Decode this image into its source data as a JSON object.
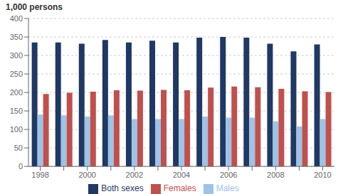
{
  "chart_data": {
    "type": "bar",
    "ylabel": "1,000 persons",
    "categories": [
      "1998",
      null,
      "2000",
      null,
      "2002",
      null,
      "2004",
      null,
      "2006",
      null,
      "2008",
      null,
      "2010"
    ],
    "series": [
      {
        "name": "Both sexes",
        "color": "#1f3864",
        "values": [
          335,
          335,
          332,
          342,
          335,
          340,
          335,
          348,
          350,
          348,
          332,
          311,
          330
        ]
      },
      {
        "name": "Males",
        "color": "#9dc3e6",
        "values": [
          140,
          138,
          135,
          138,
          128,
          128,
          128,
          135,
          132,
          132,
          122,
          108,
          128
        ]
      },
      {
        "name": "Females",
        "color": "#c0504d",
        "values": [
          196,
          199,
          202,
          206,
          205,
          207,
          206,
          213,
          216,
          214,
          210,
          203,
          201
        ]
      }
    ],
    "ylim": [
      0,
      400
    ],
    "yticks": [
      0,
      50,
      100,
      150,
      200,
      250,
      300,
      350,
      400
    ],
    "grid": true,
    "legend": "bottom"
  }
}
